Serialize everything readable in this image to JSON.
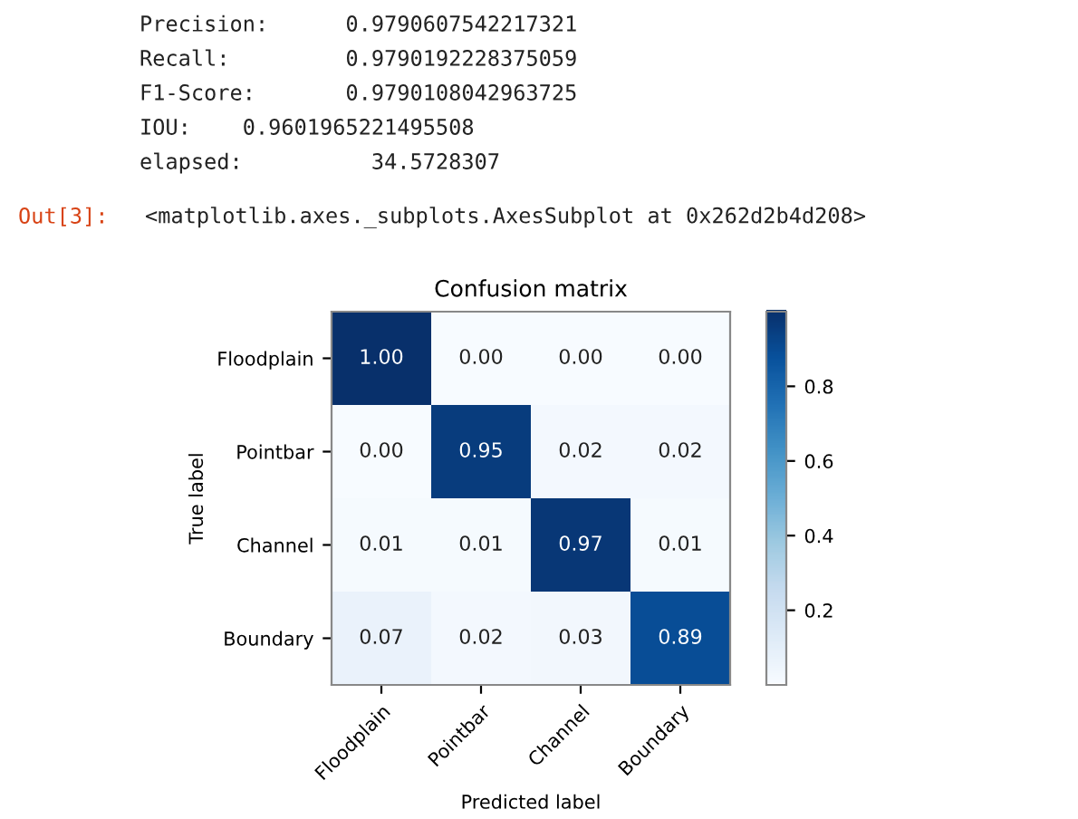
{
  "chart_data": {
    "type": "heatmap",
    "title": "Confusion matrix",
    "xlabel": "Predicted label",
    "ylabel": "True label",
    "categories": [
      "Floodplain",
      "Pointbar",
      "Channel",
      "Boundary"
    ],
    "y_categories": [
      "Floodplain",
      "Pointbar",
      "Channel",
      "Boundary"
    ],
    "cells": [
      [
        1.0,
        0.0,
        0.0,
        0.0
      ],
      [
        0.0,
        0.95,
        0.02,
        0.02
      ],
      [
        0.01,
        0.01,
        0.97,
        0.01
      ],
      [
        0.07,
        0.02,
        0.03,
        0.89
      ]
    ],
    "cell_labels": [
      [
        "1.00",
        "0.00",
        "0.00",
        "0.00"
      ],
      [
        "0.00",
        "0.95",
        "0.02",
        "0.02"
      ],
      [
        "0.01",
        "0.01",
        "0.97",
        "0.01"
      ],
      [
        "0.07",
        "0.02",
        "0.03",
        "0.89"
      ]
    ],
    "clim": [
      0,
      1
    ],
    "cticks": [
      0.2,
      0.4,
      0.6,
      0.8
    ],
    "annotations": [
      "Precision:      0.9790607542217321",
      "Recall:         0.9790192228375059",
      "F1-Score:       0.9790108042963725",
      "IOU:    0.9601965221495508",
      "elapsed:          34.5728307",
      "Out[3]:",
      "<matplotlib.axes._subplots.AxesSubplot at 0x262d2b4d208>"
    ]
  }
}
